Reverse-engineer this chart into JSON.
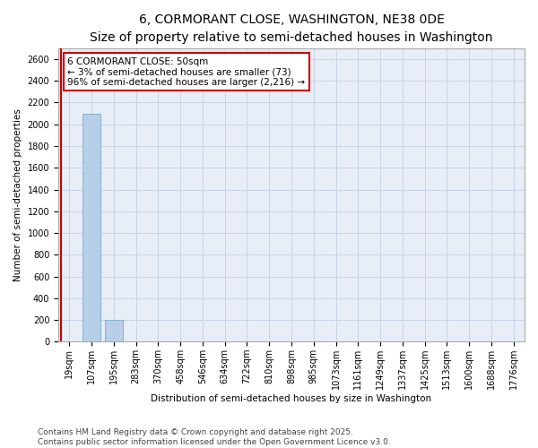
{
  "title": "6, CORMORANT CLOSE, WASHINGTON, NE38 0DE",
  "subtitle": "Size of property relative to semi-detached houses in Washington",
  "xlabel": "Distribution of semi-detached houses by size in Washington",
  "ylabel": "Number of semi-detached properties",
  "categories": [
    "19sqm",
    "107sqm",
    "195sqm",
    "283sqm",
    "370sqm",
    "458sqm",
    "546sqm",
    "634sqm",
    "722sqm",
    "810sqm",
    "898sqm",
    "985sqm",
    "1073sqm",
    "1161sqm",
    "1249sqm",
    "1337sqm",
    "1425sqm",
    "1513sqm",
    "1600sqm",
    "1688sqm",
    "1776sqm"
  ],
  "values": [
    0,
    2100,
    200,
    0,
    0,
    0,
    0,
    0,
    0,
    0,
    0,
    0,
    0,
    0,
    0,
    0,
    0,
    0,
    0,
    0,
    0
  ],
  "bar_color": "#b8cfe8",
  "bar_edge_color": "#7aaad0",
  "grid_color": "#c8d4e4",
  "background_color": "#e8eef8",
  "annotation_text": "6 CORMORANT CLOSE: 50sqm\n← 3% of semi-detached houses are smaller (73)\n96% of semi-detached houses are larger (2,216) →",
  "annotation_box_color": "#cc0000",
  "ylim": [
    0,
    2700
  ],
  "yticks": [
    0,
    200,
    400,
    600,
    800,
    1000,
    1200,
    1400,
    1600,
    1800,
    2000,
    2200,
    2400,
    2600
  ],
  "red_line_x": -0.4,
  "footer": "Contains HM Land Registry data © Crown copyright and database right 2025.\nContains public sector information licensed under the Open Government Licence v3.0.",
  "title_fontsize": 10,
  "subtitle_fontsize": 8,
  "axis_label_fontsize": 7.5,
  "tick_fontsize": 7,
  "footer_fontsize": 6.5
}
